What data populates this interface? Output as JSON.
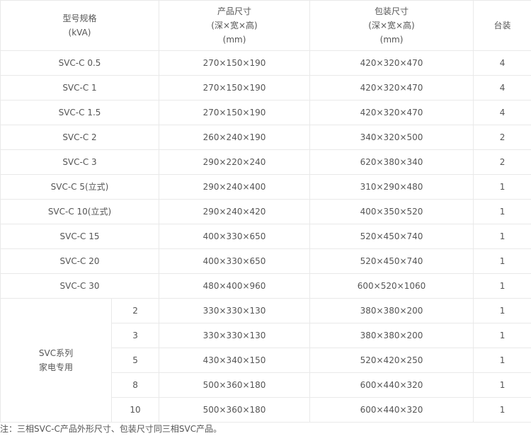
{
  "header": {
    "model": [
      "型号规格",
      "(kVA)"
    ],
    "product_size": [
      "产品尺寸",
      "(深×宽×高)",
      "(mm)"
    ],
    "package_size": [
      "包装尺寸",
      "(深×宽×高)",
      "(mm)"
    ],
    "per_box": "台装"
  },
  "rows": [
    {
      "model": "SVC-C 0.5",
      "product": "270×150×190",
      "package": "420×320×470",
      "qty": "4"
    },
    {
      "model": "SVC-C 1",
      "product": "270×150×190",
      "package": "420×320×470",
      "qty": "4"
    },
    {
      "model": "SVC-C 1.5",
      "product": "270×150×190",
      "package": "420×320×470",
      "qty": "4"
    },
    {
      "model": "SVC-C 2",
      "product": "260×240×190",
      "package": "340×320×500",
      "qty": "2"
    },
    {
      "model": "SVC-C 3",
      "product": "290×220×240",
      "package": "620×380×340",
      "qty": "2"
    },
    {
      "model": "SVC-C 5(立式)",
      "product": "290×240×400",
      "package": "310×290×480",
      "qty": "1"
    },
    {
      "model": "SVC-C 10(立式)",
      "product": "290×240×420",
      "package": "400×350×520",
      "qty": "1"
    },
    {
      "model": "SVC-C 15",
      "product": "400×330×650",
      "package": "520×450×740",
      "qty": "1"
    },
    {
      "model": "SVC-C 20",
      "product": "400×330×650",
      "package": "520×450×740",
      "qty": "1"
    },
    {
      "model": "SVC-C 30",
      "product": "480×400×960",
      "package": "600×520×1060",
      "qty": "1"
    }
  ],
  "svc_group": {
    "label": [
      "SVC系列",
      "家电专用"
    ],
    "rows": [
      {
        "model": "2",
        "product": "330×330×130",
        "package": "380×380×200",
        "qty": "1"
      },
      {
        "model": "3",
        "product": "330×330×130",
        "package": "380×380×200",
        "qty": "1"
      },
      {
        "model": "5",
        "product": "430×340×150",
        "package": "520×420×250",
        "qty": "1"
      },
      {
        "model": "8",
        "product": "500×360×180",
        "package": "600×440×320",
        "qty": "1"
      },
      {
        "model": "10",
        "product": "500×360×180",
        "package": "600×440×320",
        "qty": "1"
      }
    ]
  },
  "note": "注：三相SVC-C产品外形尺寸、包装尺寸同三相SVC产品。"
}
